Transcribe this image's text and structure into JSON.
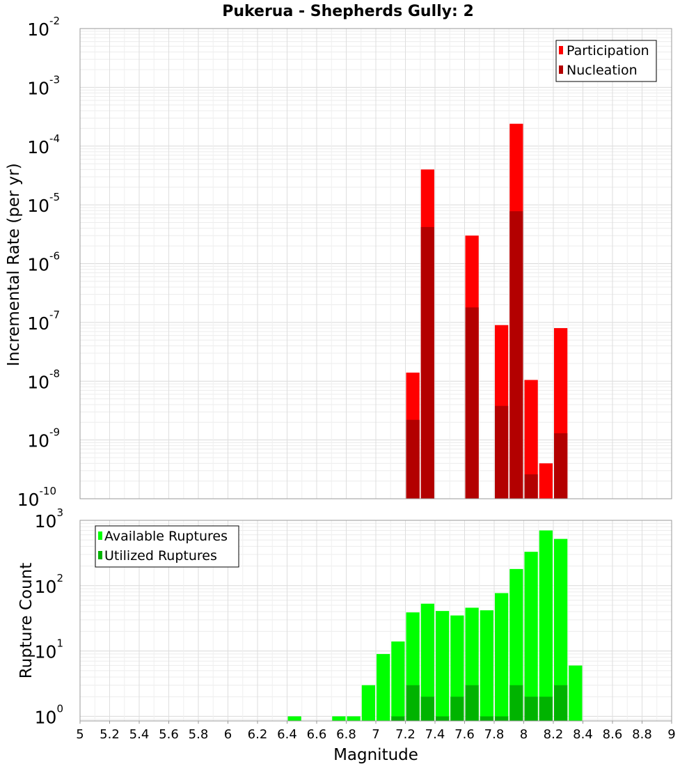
{
  "chart_data": [
    {
      "type": "bar",
      "title": "Pukerua - Shepherds Gully: 2",
      "xlabel": "Magnitude",
      "ylabel": "Incremental Rate (per yr)",
      "ylog": true,
      "ylim_exp": [
        -10,
        -2
      ],
      "xlim": [
        5,
        9
      ],
      "bin_width": 0.1,
      "grid": true,
      "legend_position": "top-right",
      "series": [
        {
          "name": "Participation",
          "color": "#ff0000",
          "x": [
            7.25,
            7.35,
            7.65,
            7.85,
            7.95,
            8.05,
            8.15,
            8.25
          ],
          "values": [
            1.4e-08,
            4e-05,
            3e-06,
            9e-08,
            0.00024,
            1.05e-08,
            4e-10,
            8e-08
          ]
        },
        {
          "name": "Nucleation",
          "color": "#b30000",
          "x": [
            7.25,
            7.35,
            7.65,
            7.85,
            7.95,
            8.05,
            8.25
          ],
          "values": [
            2.2e-09,
            4.2e-06,
            1.8e-07,
            3.8e-09,
            7.8e-06,
            2.6e-10,
            1.3e-09
          ]
        }
      ],
      "xticks": [
        "5",
        "5.2",
        "5.4",
        "5.6",
        "5.8",
        "6",
        "6.2",
        "6.4",
        "6.6",
        "6.8",
        "7",
        "7.2",
        "7.4",
        "7.6",
        "7.8",
        "8",
        "8.2",
        "8.4",
        "8.6",
        "8.8",
        "9"
      ]
    },
    {
      "type": "bar",
      "xlabel": "Magnitude",
      "ylabel": "Rupture Count",
      "ylog": true,
      "ylim_exp": [
        -0.07,
        3
      ],
      "xlim": [
        5,
        9
      ],
      "bin_width": 0.1,
      "grid": true,
      "legend_position": "top-left",
      "series": [
        {
          "name": "Available Ruptures",
          "color": "#00ff00",
          "x": [
            6.45,
            6.75,
            6.85,
            6.95,
            7.05,
            7.15,
            7.25,
            7.35,
            7.45,
            7.55,
            7.65,
            7.75,
            7.85,
            7.95,
            8.05,
            8.15,
            8.25,
            8.35
          ],
          "values": [
            1,
            1,
            1,
            3,
            9,
            14,
            39,
            53,
            41,
            35,
            46,
            42,
            77,
            180,
            330,
            700,
            520,
            6
          ]
        },
        {
          "name": "Utilized Ruptures",
          "color": "#00b300",
          "x": [
            7.15,
            7.25,
            7.35,
            7.45,
            7.55,
            7.65,
            7.75,
            7.85,
            7.95,
            8.05,
            8.15,
            8.25
          ],
          "values": [
            1,
            3,
            2,
            1,
            2,
            3,
            1,
            1,
            3,
            2,
            2,
            3
          ]
        }
      ],
      "xticks": [
        "5",
        "5.2",
        "5.4",
        "5.6",
        "5.8",
        "6",
        "6.2",
        "6.4",
        "6.6",
        "6.8",
        "7",
        "7.2",
        "7.4",
        "7.6",
        "7.8",
        "8",
        "8.2",
        "8.4",
        "8.6",
        "8.8",
        "9"
      ]
    }
  ]
}
